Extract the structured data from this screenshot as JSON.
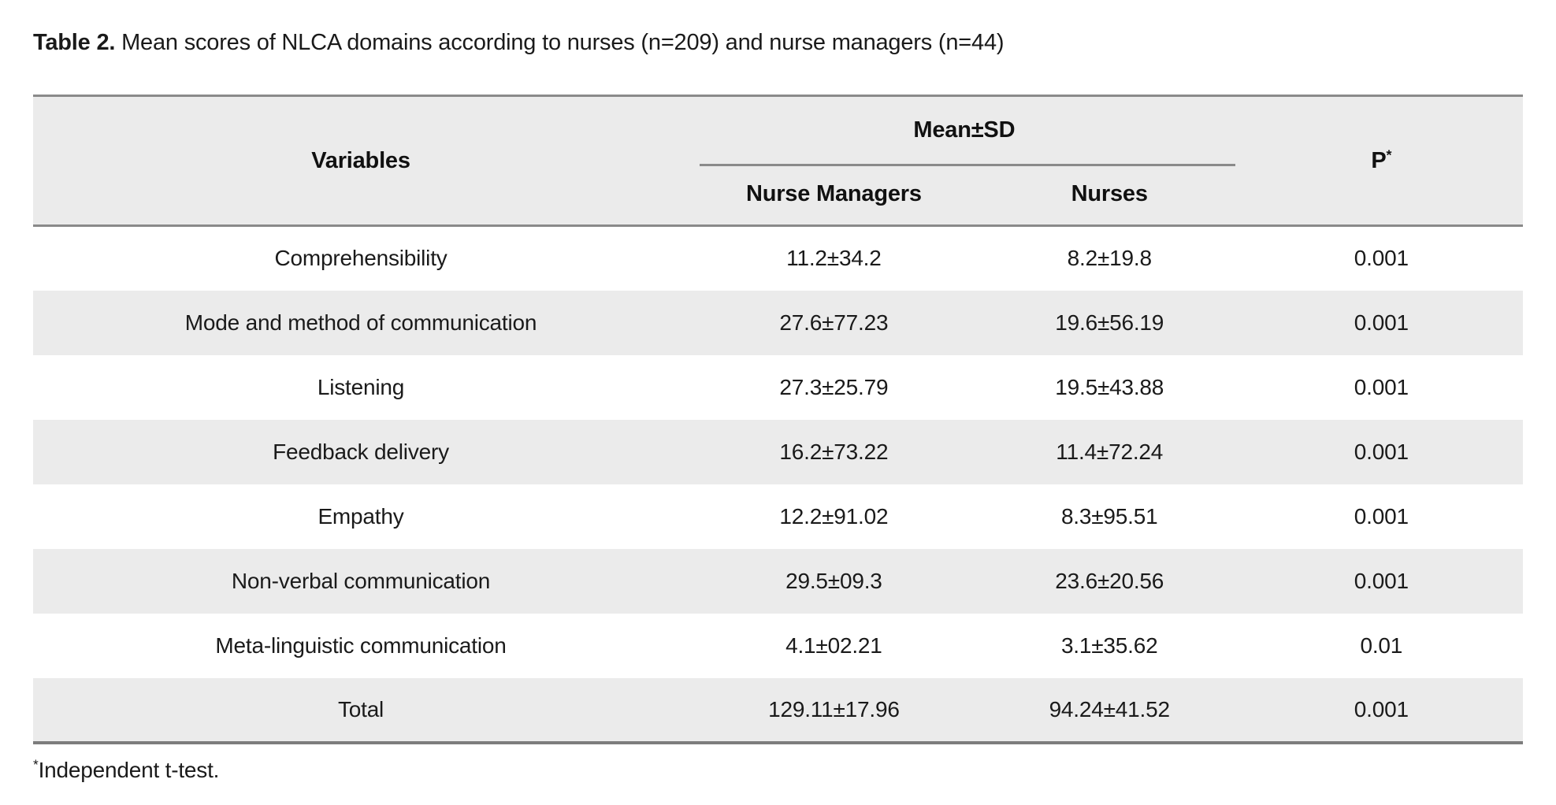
{
  "title": {
    "label": "Table 2.",
    "text": " Mean scores of NLCA domains according to nurses (n=209) and nurse managers (n=44)"
  },
  "table": {
    "header": {
      "variables": "Variables",
      "mean_sd": "Mean±SD",
      "nurse_managers": "Nurse Managers",
      "nurses": "Nurses",
      "p": "P",
      "p_sup": "*"
    },
    "rows": [
      {
        "variable": "Comprehensibility",
        "nurse_managers": "11.2±34.2",
        "nurses": "8.2±19.8",
        "p": "0.001"
      },
      {
        "variable": "Mode and method of communication",
        "nurse_managers": "27.6±77.23",
        "nurses": "19.6±56.19",
        "p": "0.001"
      },
      {
        "variable": "Listening",
        "nurse_managers": "27.3±25.79",
        "nurses": "19.5±43.88",
        "p": "0.001"
      },
      {
        "variable": "Feedback delivery",
        "nurse_managers": "16.2±73.22",
        "nurses": "11.4±72.24",
        "p": "0.001"
      },
      {
        "variable": "Empathy",
        "nurse_managers": "12.2±91.02",
        "nurses": "8.3±95.51",
        "p": "0.001"
      },
      {
        "variable": "Non-verbal communication",
        "nurse_managers": "29.5±09.3",
        "nurses": "23.6±20.56",
        "p": "0.001"
      },
      {
        "variable": "Meta-linguistic communication",
        "nurse_managers": "4.1±02.21",
        "nurses": "3.1±35.62",
        "p": "0.01"
      },
      {
        "variable": "Total",
        "nurse_managers": "129.11±17.96",
        "nurses": "94.24±41.52",
        "p": "0.001"
      }
    ]
  },
  "footnote": {
    "sup": "*",
    "text": "Independent t-test."
  },
  "colors": {
    "stripe_gray": "#ebebeb",
    "border_gray": "#8a8a8a",
    "text": "#1a1a1a",
    "background": "#ffffff"
  }
}
